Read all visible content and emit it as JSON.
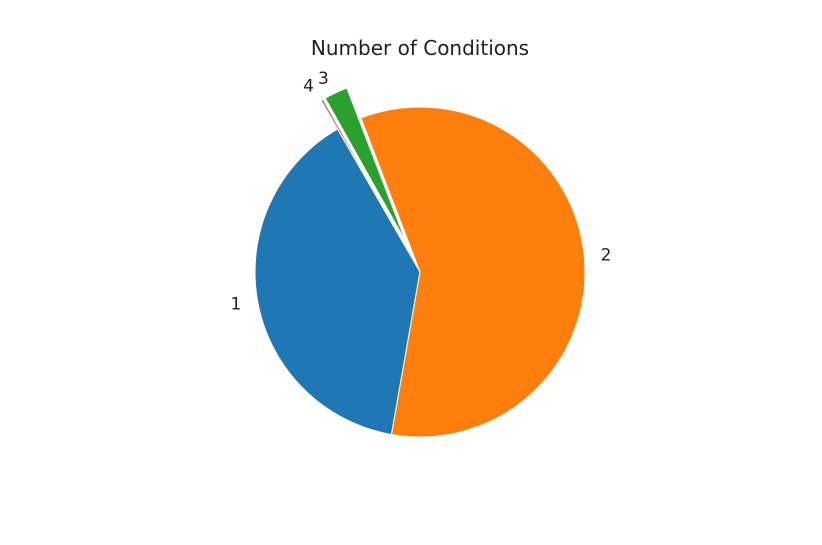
{
  "chart_data": {
    "type": "pie",
    "title": "Number of Conditions",
    "labels": [
      "1",
      "2",
      "3",
      "4"
    ],
    "values": [
      38.9,
      58.6,
      2.3,
      0.2
    ],
    "explode": [
      0,
      0,
      0.2,
      0.2
    ],
    "colors": [
      "#1f77b4",
      "#ff7f0e",
      "#2ca02c",
      "#d62728"
    ],
    "start_angle_deg": 120,
    "direction": "counterclockwise",
    "legend": "none"
  }
}
